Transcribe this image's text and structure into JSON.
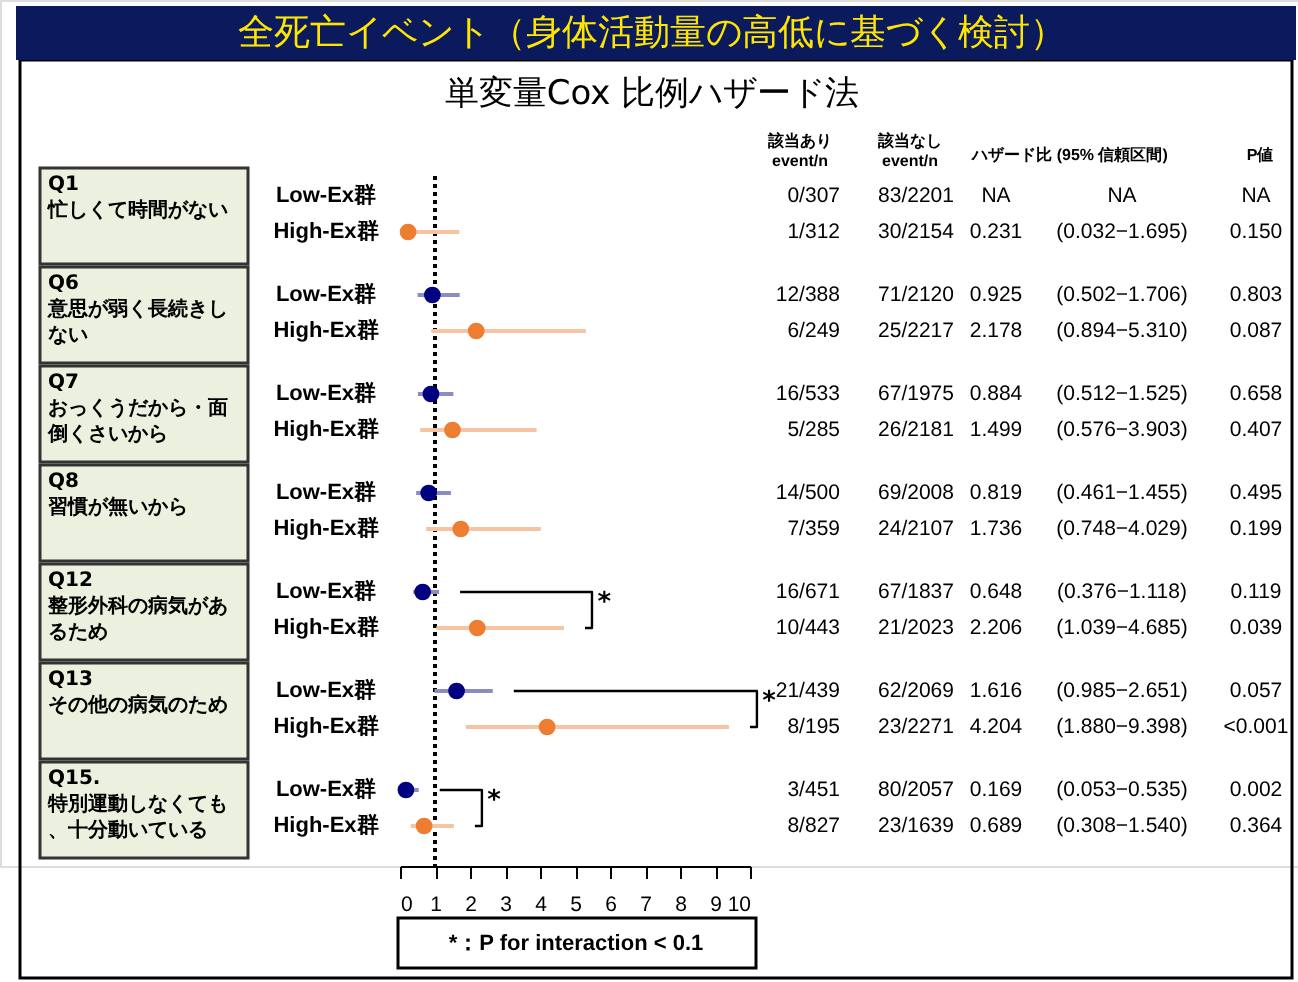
{
  "chart_data": {
    "type": "scatter",
    "orientation": "horizontal",
    "title": "全死亡イベント（身体活動量の高低に基づく検討）",
    "subtitle": "単変量Cox 比例ハザード法",
    "categories": [
      "Low-Ex群",
      "High-Ex群",
      "Low-Ex群",
      "High-Ex群",
      "Low-Ex群",
      "High-Ex群",
      "Low-Ex群",
      "High-Ex群",
      "Low-Ex群",
      "High-Ex群",
      "Low-Ex群",
      "High-Ex群",
      "Low-Ex群",
      "High-Ex群"
    ],
    "series": [
      {
        "color": "#000080",
        "values": [
          null,
          null,
          0.925,
          null,
          0.884,
          null,
          0.819,
          null,
          0.648,
          null,
          1.616,
          null,
          0.169,
          null
        ],
        "errors": [
          null,
          null,
          [
            0.502,
            1.706
          ],
          null,
          [
            0.512,
            1.525
          ],
          null,
          [
            0.461,
            1.455
          ],
          null,
          [
            0.376,
            1.118
          ],
          null,
          [
            0.985,
            2.651
          ],
          null,
          [
            0.053,
            0.535
          ],
          null
        ]
      },
      {
        "color": "#ed7d31",
        "values": [
          null,
          0.231,
          null,
          2.178,
          null,
          1.499,
          null,
          1.736,
          null,
          2.206,
          null,
          4.204,
          null,
          0.689
        ],
        "errors": [
          null,
          [
            0.032,
            1.695
          ],
          null,
          [
            0.894,
            5.31
          ],
          null,
          [
            0.576,
            3.903
          ],
          null,
          [
            0.748,
            4.029
          ],
          null,
          [
            1.039,
            4.685
          ],
          null,
          [
            1.88,
            9.398
          ],
          null,
          [
            0.308,
            1.54
          ]
        ]
      }
    ],
    "marker": "circle",
    "xlim": [
      0,
      10
    ],
    "xticks": [
      0,
      1,
      2,
      3,
      4,
      5,
      6,
      7,
      8,
      9,
      10
    ],
    "ref_lines": [
      {
        "axis": "x",
        "value": 1,
        "line_style": "dotted",
        "color": "#000000"
      }
    ],
    "grid": false,
    "annotations": [
      "該当あり\nevent/n",
      "該当なし\nevent/n",
      "ハザード比 (95% 信頼区間)",
      "P値",
      "0/307",
      "83/2201",
      "NA",
      "NA",
      "NA",
      "1/312",
      "30/2154",
      "0.231",
      "(0.032−1.695)",
      "0.150",
      "12/388",
      "71/2120",
      "0.925",
      "(0.502−1.706)",
      "0.803",
      "6/249",
      "25/2217",
      "2.178",
      "(0.894−5.310)",
      "0.087",
      "16/533",
      "67/1975",
      "0.884",
      "(0.512−1.525)",
      "0.658",
      "5/285",
      "26/2181",
      "1.499",
      "(0.576−3.903)",
      "0.407",
      "14/500",
      "69/2008",
      "0.819",
      "(0.461−1.455)",
      "0.495",
      "7/359",
      "24/2107",
      "1.736",
      "(0.748−4.029)",
      "0.199",
      "16/671",
      "67/1837",
      "0.648",
      "(0.376−1.118)",
      "0.119",
      "10/443",
      "21/2023",
      "2.206",
      "(1.039−4.685)",
      "0.039",
      "21/439",
      "62/2069",
      "1.616",
      "(0.985−2.651)",
      "0.057",
      "8/195",
      "23/2271",
      "4.204",
      "(1.880−9.398)",
      "<0.001",
      "3/451",
      "80/2057",
      "0.169",
      "(0.053−0.535)",
      "0.002",
      "8/827",
      "23/1639",
      "0.689",
      "(0.308−1.540)",
      "0.364",
      "Q1",
      "Q6",
      "Q7",
      "Q8",
      "Q12",
      "Q13",
      "Q15.",
      "忙しくて時間がない",
      "意思が弱く長続きしない",
      "おっくうだから・面倒くさいから",
      "習慣が無いから",
      "整形外科の病気があるため",
      "その他の病気のため",
      "特別運動しなくても、十分動いている",
      "*",
      "*",
      "*",
      "*：P for interaction < 0.1"
    ]
  }
}
